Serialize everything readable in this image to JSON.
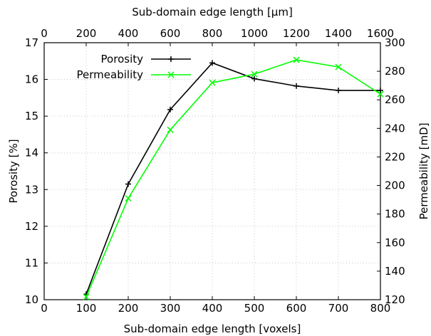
{
  "chart_data": {
    "type": "line",
    "x_bottom": {
      "label": "Sub-domain edge length [voxels]",
      "range": [
        0,
        800
      ],
      "ticks": [
        0,
        100,
        200,
        300,
        400,
        500,
        600,
        700,
        800
      ]
    },
    "x_top": {
      "label": "Sub-domain edge length [µm]",
      "range": [
        0,
        1600
      ],
      "ticks": [
        0,
        200,
        400,
        600,
        800,
        1000,
        1200,
        1400,
        1600
      ]
    },
    "y_left": {
      "label": "Porosity [%]",
      "range": [
        10,
        17
      ],
      "ticks": [
        10,
        11,
        12,
        13,
        14,
        15,
        16,
        17
      ]
    },
    "y_right": {
      "label": "Permeability [mD]",
      "range": [
        120,
        300
      ],
      "ticks": [
        120,
        140,
        160,
        180,
        200,
        220,
        240,
        260,
        280,
        300
      ]
    },
    "grid": true,
    "legend_position": "top-left",
    "series": [
      {
        "name": "Porosity",
        "axis": "left",
        "color": "#000000",
        "marker": "plus",
        "x": [
          100,
          200,
          300,
          400,
          500,
          600,
          700,
          800
        ],
        "y": [
          10.15,
          13.15,
          15.18,
          16.45,
          16.02,
          15.82,
          15.7,
          15.7
        ]
      },
      {
        "name": "Permeability",
        "axis": "right",
        "color": "#00ff00",
        "marker": "x",
        "x": [
          100,
          200,
          300,
          400,
          500,
          600,
          700,
          800
        ],
        "y": [
          122,
          191,
          239,
          272,
          278,
          288,
          283,
          264
        ]
      }
    ]
  }
}
